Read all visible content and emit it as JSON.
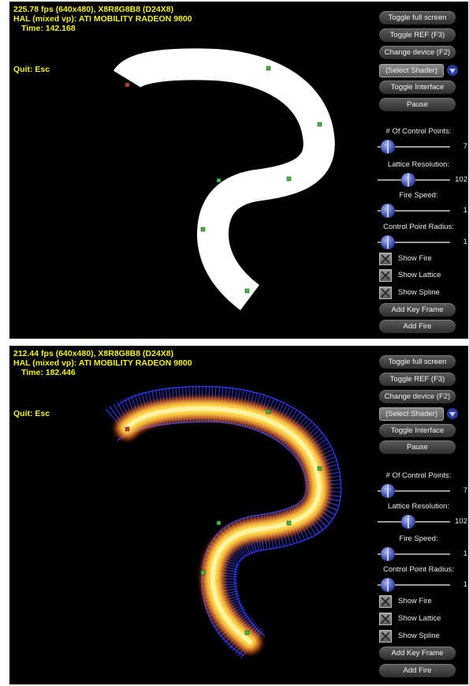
{
  "panels": [
    {
      "stats": {
        "line1": "225.78 fps (640x480), X8R8G8B8 (D24X8)",
        "line2": "HAL (mixed vp): ATI MOBILITY RADEON 9800",
        "time": "Time: 142.168"
      },
      "quit": "Quit: Esc",
      "buttons": {
        "toggle_full_screen": "Toggle full screen",
        "toggle_ref": "Toggle REF (F3)",
        "change_device": "Change device (F2)",
        "toggle_interface": "Toggle Interface",
        "pause": "Pause",
        "add_key_frame": "Add Key Frame",
        "add_fire": "Add Fire"
      },
      "shader_select": "(Select Shader)",
      "sliders": {
        "control_points": {
          "label": "# Of Control Points:",
          "value": "7"
        },
        "lattice_resolution": {
          "label": "Lattice Resolution:",
          "value": "102"
        },
        "fire_speed": {
          "label": "Fire Speed:",
          "value": "1"
        },
        "control_point_radius": {
          "label": "Control Point Radius:",
          "value": "1"
        }
      },
      "checkboxes": {
        "show_fire": "Show Fire",
        "show_lattice": "Show Lattice",
        "show_spline": "Show Spline"
      },
      "render_mode": "white-spline"
    },
    {
      "stats": {
        "line1": "212.44 fps (640x480), X8R8G8B8 (D24X8)",
        "line2": "HAL (mixed vp): ATI MOBILITY RADEON 9800",
        "time": "Time: 182.446"
      },
      "quit": "Quit: Esc",
      "buttons": {
        "toggle_full_screen": "Toggle full screen",
        "toggle_ref": "Toggle REF (F3)",
        "change_device": "Change device (F2)",
        "toggle_interface": "Toggle Interface",
        "pause": "Pause",
        "add_key_frame": "Add Key Frame",
        "add_fire": "Add Fire"
      },
      "shader_select": "(Select Shader)",
      "sliders": {
        "control_points": {
          "label": "# Of Control Points:",
          "value": "7"
        },
        "lattice_resolution": {
          "label": "Lattice Resolution:",
          "value": "102"
        },
        "fire_speed": {
          "label": "Fire Speed:",
          "value": "1"
        },
        "control_point_radius": {
          "label": "Control Point Radius:",
          "value": "1"
        }
      },
      "checkboxes": {
        "show_fire": "Show Fire",
        "show_lattice": "Show Lattice",
        "show_spline": "Show Spline"
      },
      "render_mode": "fire-with-lattice"
    }
  ],
  "colors": {
    "hud_text": "#f5f10a",
    "panel_bg": "#000000",
    "lattice": "#2f3cff",
    "control_point": "#3fbf3f"
  },
  "icons": {
    "dropdown": "chevron-down-icon",
    "checkbox": "x-mark-icon",
    "slider": "slider-thumb-icon"
  }
}
